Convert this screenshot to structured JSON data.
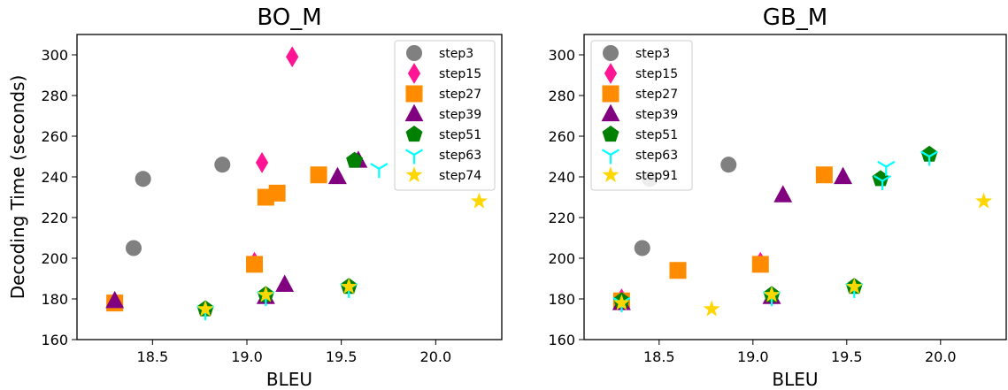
{
  "chart_data": [
    {
      "type": "scatter",
      "title": "BO_M",
      "xlabel": "BLEU",
      "ylabel": "Decoding Time (seconds)",
      "xlim": [
        18.1,
        20.35
      ],
      "ylim": [
        160,
        310
      ],
      "xticks": [
        "18.5",
        "19.0",
        "19.5",
        "20.0"
      ],
      "yticks": [
        "160",
        "180",
        "200",
        "220",
        "240",
        "260",
        "280",
        "300"
      ],
      "legend_position": "top-right",
      "series": [
        {
          "name": "step3",
          "marker": "circle",
          "color": "#808080",
          "points": [
            [
              18.4,
              205
            ],
            [
              18.45,
              239
            ],
            [
              18.87,
              246
            ]
          ]
        },
        {
          "name": "step15",
          "marker": "diamond",
          "color": "#ff1493",
          "points": [
            [
              19.04,
              198
            ],
            [
              19.08,
              247
            ],
            [
              19.24,
              299
            ]
          ]
        },
        {
          "name": "step27",
          "marker": "square",
          "color": "#ff8c00",
          "points": [
            [
              18.3,
              178
            ],
            [
              19.04,
              197
            ],
            [
              19.1,
              230
            ],
            [
              19.16,
              232
            ],
            [
              19.38,
              241
            ]
          ]
        },
        {
          "name": "step39",
          "marker": "triangle",
          "color": "#800080",
          "points": [
            [
              18.3,
              179
            ],
            [
              19.1,
              181
            ],
            [
              19.2,
              187
            ],
            [
              19.48,
              240
            ],
            [
              19.59,
              248
            ]
          ]
        },
        {
          "name": "step51",
          "marker": "pentagon",
          "color": "#008000",
          "points": [
            [
              18.78,
              175
            ],
            [
              19.1,
              182
            ],
            [
              19.54,
              186
            ],
            [
              19.57,
              248
            ]
          ]
        },
        {
          "name": "step63",
          "marker": "tri_down",
          "color": "#00ffff",
          "points": [
            [
              18.78,
              174
            ],
            [
              19.1,
              181
            ],
            [
              19.54,
              185
            ],
            [
              19.7,
              244
            ]
          ]
        },
        {
          "name": "step74",
          "marker": "star",
          "color": "#ffd700",
          "points": [
            [
              18.78,
              175
            ],
            [
              19.1,
              182
            ],
            [
              19.54,
              186
            ],
            [
              20.23,
              228
            ]
          ]
        }
      ]
    },
    {
      "type": "scatter",
      "title": "GB_M",
      "xlabel": "BLEU",
      "ylabel": "",
      "xlim": [
        18.1,
        20.35
      ],
      "ylim": [
        160,
        310
      ],
      "xticks": [
        "18.5",
        "19.0",
        "19.5",
        "20.0"
      ],
      "yticks": [
        "160",
        "180",
        "200",
        "220",
        "240",
        "260",
        "280",
        "300"
      ],
      "legend_position": "top-left",
      "series": [
        {
          "name": "step3",
          "marker": "circle",
          "color": "#808080",
          "points": [
            [
              18.41,
              205
            ],
            [
              18.45,
              239
            ],
            [
              18.87,
              246
            ]
          ]
        },
        {
          "name": "step15",
          "marker": "diamond",
          "color": "#ff1493",
          "points": [
            [
              18.3,
              180
            ],
            [
              19.04,
              198
            ]
          ]
        },
        {
          "name": "step27",
          "marker": "square",
          "color": "#ff8c00",
          "points": [
            [
              18.3,
              179
            ],
            [
              18.6,
              194
            ],
            [
              19.04,
              197
            ],
            [
              19.38,
              241
            ]
          ]
        },
        {
          "name": "step39",
          "marker": "triangle",
          "color": "#800080",
          "points": [
            [
              18.3,
              178
            ],
            [
              19.1,
              181
            ],
            [
              19.16,
              231
            ],
            [
              19.48,
              240
            ]
          ]
        },
        {
          "name": "step51",
          "marker": "pentagon",
          "color": "#008000",
          "points": [
            [
              18.3,
              179
            ],
            [
              19.1,
              182
            ],
            [
              19.54,
              186
            ],
            [
              19.68,
              239
            ],
            [
              19.94,
              251
            ]
          ]
        },
        {
          "name": "step63",
          "marker": "tri_down",
          "color": "#00ffff",
          "points": [
            [
              18.3,
              178
            ],
            [
              19.1,
              181
            ],
            [
              19.54,
              185
            ],
            [
              19.69,
              238
            ],
            [
              19.71,
              245
            ],
            [
              19.94,
              250
            ]
          ]
        },
        {
          "name": "step91",
          "marker": "star",
          "color": "#ffd700",
          "points": [
            [
              18.3,
              178
            ],
            [
              18.78,
              175
            ],
            [
              19.1,
              182
            ],
            [
              19.54,
              186
            ],
            [
              20.23,
              228
            ]
          ]
        }
      ]
    }
  ]
}
